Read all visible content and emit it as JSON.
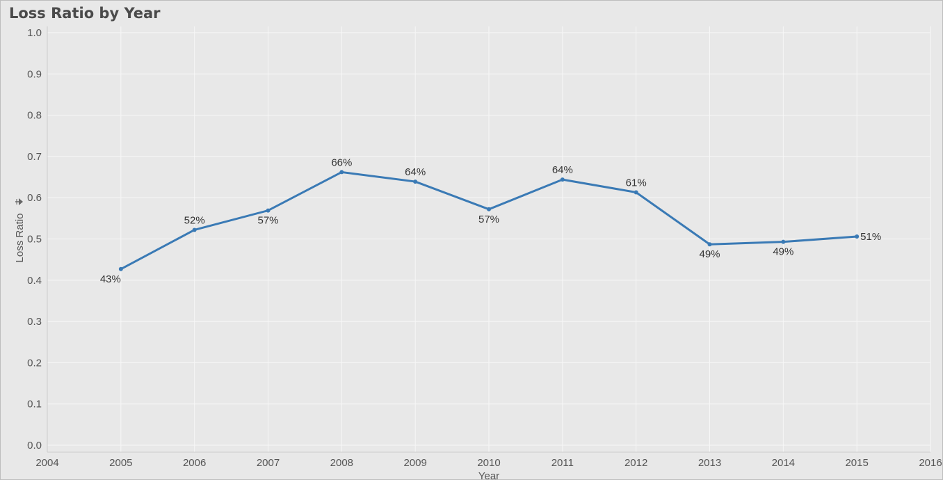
{
  "chart_data": {
    "type": "line",
    "title": "Loss Ratio by Year",
    "xlabel": "Year",
    "ylabel": "Loss Ratio",
    "sort_indicator_icon": "sort-descending-icon",
    "x_ticks": [
      "2004",
      "2005",
      "2006",
      "2007",
      "2008",
      "2009",
      "2010",
      "2011",
      "2012",
      "2013",
      "2014",
      "2015",
      "2016"
    ],
    "xlim": [
      2004,
      2016
    ],
    "y_ticks": [
      "1.0",
      "0.9",
      "0.8",
      "0.7",
      "0.6",
      "0.5",
      "0.4",
      "0.3",
      "0.2",
      "0.1",
      "0.0"
    ],
    "ylim": [
      0,
      1.0
    ],
    "grid": true,
    "line_color": "#3a7ab5",
    "series": [
      {
        "x": [
          2005,
          2006,
          2007,
          2008,
          2009,
          2010,
          2011,
          2012,
          2013,
          2014,
          2015
        ],
        "values": [
          0.427,
          0.522,
          0.569,
          0.662,
          0.639,
          0.572,
          0.644,
          0.613,
          0.487,
          0.493,
          0.506
        ],
        "labels": [
          "43%",
          "52%",
          "57%",
          "66%",
          "64%",
          "57%",
          "64%",
          "61%",
          "49%",
          "49%",
          "51%"
        ],
        "label_pos": [
          "below",
          "above",
          "below",
          "above",
          "above",
          "below",
          "above",
          "above",
          "below",
          "below",
          "right"
        ]
      }
    ]
  }
}
